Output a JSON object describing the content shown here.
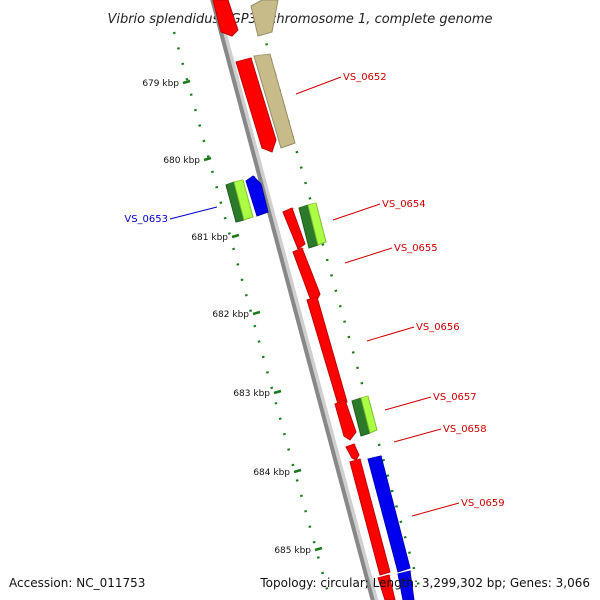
{
  "title": "Vibrio splendidus LGP32 chromosome 1, complete genome",
  "footer": {
    "accession": "Accession: NC_011753",
    "summary": "Topology: circular; Length: 3,299,302 bp; Genes: 3,066"
  },
  "ticks": [
    {
      "label": "679 kbp"
    },
    {
      "label": "680 kbp"
    },
    {
      "label": "681 kbp"
    },
    {
      "label": "682 kbp"
    },
    {
      "label": "683 kbp"
    },
    {
      "label": "684 kbp"
    },
    {
      "label": "685 kbp"
    }
  ],
  "gene_labels": [
    {
      "text": "VS_0652",
      "color": "#cc0000"
    },
    {
      "text": "VS_0653",
      "color": "#0000cc"
    },
    {
      "text": "VS_0654",
      "color": "#cc0000"
    },
    {
      "text": "VS_0655",
      "color": "#cc0000"
    },
    {
      "text": "VS_0656",
      "color": "#cc0000"
    },
    {
      "text": "VS_0657",
      "color": "#cc0000"
    },
    {
      "text": "VS_0658",
      "color": "#cc0000"
    },
    {
      "text": "VS_0659",
      "color": "#cc0000"
    }
  ],
  "colors": {
    "cds": "#ff0000",
    "gene_tan": "#c8bb8a",
    "blue": "#0000ee",
    "green_dark": "#2a7a2a",
    "green_light": "#aaff44",
    "backbone": "#888888",
    "tick": "#1a7a1a"
  }
}
